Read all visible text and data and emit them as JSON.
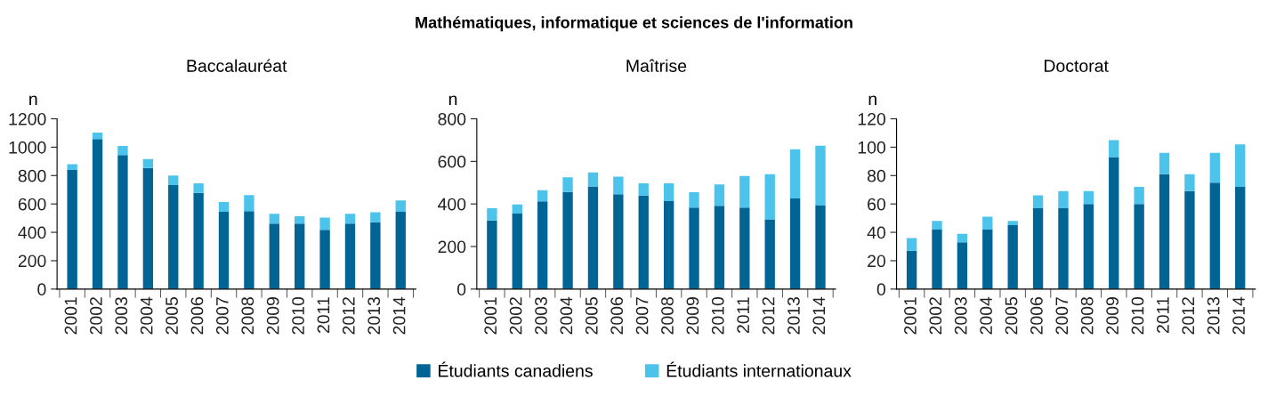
{
  "chart_data": [
    {
      "type": "bar",
      "stacked": true,
      "title": "Baccalauréat",
      "ylabel": "n",
      "annotations": [
        "Mathématiques, informatique et sciences de l'information"
      ],
      "legend": "bottom",
      "grid": false,
      "categories": [
        "2001",
        "2002",
        "2003",
        "2004",
        "2005",
        "2006",
        "2007",
        "2008",
        "2009",
        "2010",
        "2011",
        "2012",
        "2013",
        "2014"
      ],
      "ylim": [
        0,
        1200
      ],
      "yticks": [
        0,
        200,
        400,
        600,
        800,
        1000,
        1200
      ],
      "series": [
        {
          "name": "Étudiants canadiens",
          "color": "#006595",
          "values": [
            839,
            1058,
            944,
            853,
            733,
            678,
            545,
            550,
            461,
            461,
            417,
            461,
            471,
            545
          ]
        },
        {
          "name": "Étudiants internationaux",
          "color": "#4bc3ea",
          "values": [
            41,
            45,
            64,
            64,
            67,
            68,
            69,
            113,
            70,
            53,
            87,
            70,
            70,
            79
          ]
        }
      ]
    },
    {
      "type": "bar",
      "stacked": true,
      "title": "Maîtrise",
      "ylabel": "n",
      "grid": false,
      "categories": [
        "2001",
        "2002",
        "2003",
        "2004",
        "2005",
        "2006",
        "2007",
        "2008",
        "2009",
        "2010",
        "2011",
        "2012",
        "2013",
        "2014"
      ],
      "ylim": [
        0,
        800
      ],
      "yticks": [
        0,
        200,
        400,
        600,
        800
      ],
      "series": [
        {
          "color": "#006595",
          "values": [
            322,
            355,
            412,
            456,
            482,
            446,
            439,
            413,
            383,
            391,
            383,
            328,
            426,
            394
          ]
        },
        {
          "color": "#4bc3ea",
          "values": [
            58,
            43,
            52,
            69,
            66,
            82,
            58,
            84,
            72,
            101,
            148,
            212,
            231,
            280
          ]
        }
      ]
    },
    {
      "type": "bar",
      "stacked": true,
      "title": "Doctorat",
      "ylabel": "n",
      "grid": false,
      "categories": [
        "2001",
        "2002",
        "2003",
        "2004",
        "2005",
        "2006",
        "2007",
        "2008",
        "2009",
        "2010",
        "2011",
        "2012",
        "2013",
        "2014"
      ],
      "ylim": [
        0,
        120
      ],
      "yticks": [
        0,
        20,
        40,
        60,
        80,
        100,
        120
      ],
      "series": [
        {
          "color": "#006595",
          "values": [
            27,
            42,
            33,
            42,
            45,
            57,
            57,
            60,
            93,
            60,
            81,
            69,
            75,
            72
          ]
        },
        {
          "color": "#4bc3ea",
          "values": [
            9,
            6,
            6,
            9,
            3,
            9,
            12,
            9,
            12,
            12,
            15,
            12,
            21,
            30
          ]
        }
      ]
    }
  ]
}
